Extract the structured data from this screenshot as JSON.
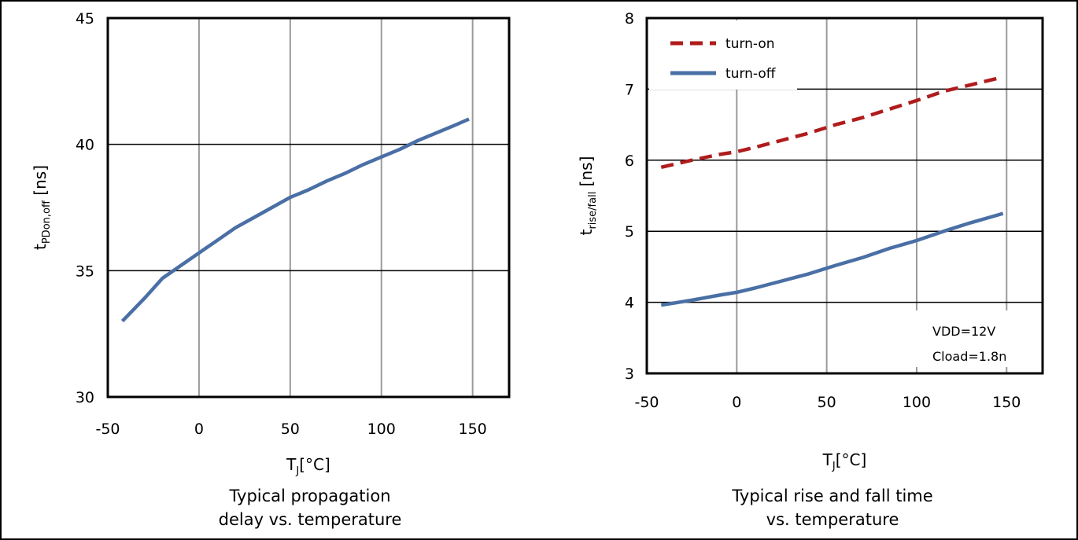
{
  "chart_data": [
    {
      "type": "line",
      "title": "Typical propagation delay vs. temperature",
      "caption_lines": [
        "Typical propagation",
        "delay vs. temperature"
      ],
      "xlabel": {
        "main": "T",
        "sub": "J",
        "rest": "[°C]"
      },
      "ylabel": {
        "main": "t",
        "sub": "PDon,off",
        "rest": " [ns]"
      },
      "xlim": [
        -50,
        170
      ],
      "ylim": [
        30,
        45
      ],
      "xticks": [
        -50,
        0,
        50,
        100,
        150
      ],
      "yticks": [
        30,
        35,
        40,
        45
      ],
      "grid": {
        "vertical": true,
        "horizontal": true
      },
      "series": [
        {
          "color": "#4a6fa5",
          "dash": "solid",
          "x": [
            -42,
            -30,
            -20,
            -10,
            0,
            10,
            20,
            30,
            40,
            50,
            60,
            70,
            80,
            90,
            100,
            110,
            120,
            130,
            140,
            148
          ],
          "y": [
            33.0,
            33.9,
            34.7,
            35.2,
            35.7,
            36.2,
            36.7,
            37.1,
            37.5,
            37.9,
            38.2,
            38.55,
            38.85,
            39.2,
            39.5,
            39.8,
            40.15,
            40.45,
            40.75,
            41.0
          ]
        }
      ]
    },
    {
      "type": "line",
      "title": "Typical rise and fall time vs. temperature",
      "caption_lines": [
        "Typical rise and fall time",
        "vs. temperature"
      ],
      "xlabel": {
        "main": "T",
        "sub": "J",
        "rest": "[°C]"
      },
      "ylabel": {
        "main": "t",
        "sub": "rise/fall",
        "rest": " [ns]"
      },
      "xlim": [
        -50,
        170
      ],
      "ylim": [
        3,
        8
      ],
      "xticks": [
        -50,
        0,
        50,
        100,
        150
      ],
      "yticks": [
        3,
        4,
        5,
        6,
        7,
        8
      ],
      "grid": {
        "vertical": true,
        "horizontal": true
      },
      "legend": {
        "position": "top-left"
      },
      "annotations": [
        "VDD=12V",
        "Cload=1.8n"
      ],
      "series": [
        {
          "name": "turn-on",
          "color": "#b01c1c",
          "dash": "dashed",
          "x": [
            -42,
            -25,
            -10,
            0,
            10,
            25,
            40,
            55,
            70,
            85,
            100,
            115,
            130,
            148
          ],
          "y": [
            5.9,
            6.0,
            6.08,
            6.12,
            6.18,
            6.28,
            6.38,
            6.5,
            6.6,
            6.72,
            6.84,
            6.97,
            7.06,
            7.17
          ]
        },
        {
          "name": "turn-off",
          "color": "#4a6fa5",
          "dash": "solid",
          "x": [
            -42,
            -25,
            -10,
            0,
            10,
            25,
            40,
            55,
            70,
            85,
            100,
            115,
            130,
            148
          ],
          "y": [
            3.96,
            4.03,
            4.1,
            4.14,
            4.2,
            4.3,
            4.4,
            4.52,
            4.63,
            4.76,
            4.87,
            5.0,
            5.12,
            5.25
          ]
        }
      ]
    }
  ]
}
